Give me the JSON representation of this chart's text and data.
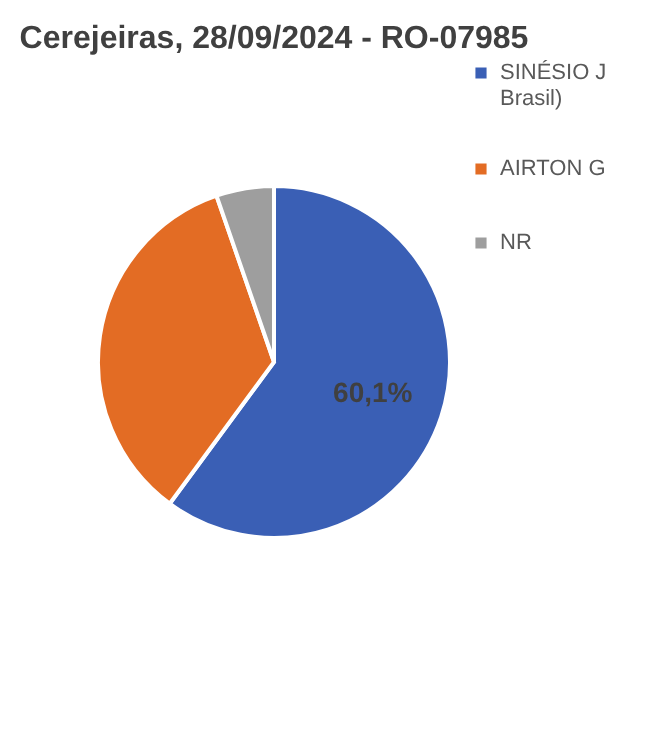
{
  "chart_data": {
    "type": "pie",
    "title": "Cerejeiras, 28/09/2024 - RO-07985",
    "categories": [
      "SINÉSIO J\nBrasil)",
      "AIRTON G",
      "NR"
    ],
    "values": [
      60.1,
      34.6,
      5.3
    ],
    "colors": [
      "#3a5fb5",
      "#e36c24",
      "#9e9e9e"
    ],
    "value_labels": [
      "60,1%",
      null,
      null
    ],
    "legend": "right"
  }
}
